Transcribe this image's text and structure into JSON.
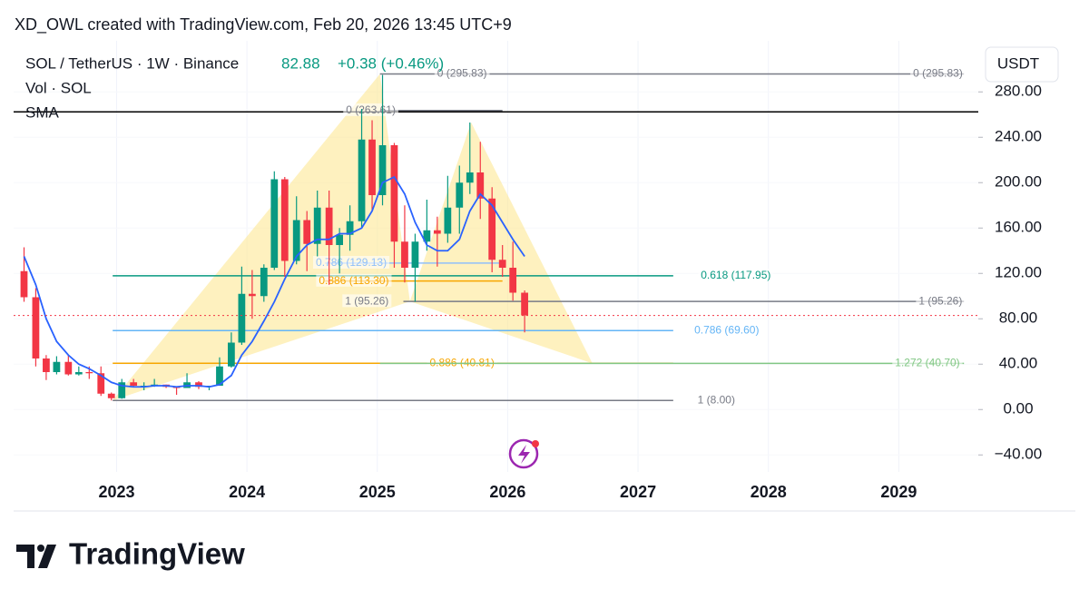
{
  "header": {
    "credit": "XD_OWL created with TradingView.com, Feb 20, 2026 13:45 UTC+9"
  },
  "footer": {
    "brand": "TradingView"
  },
  "chart_data": {
    "type": "candlestick",
    "title": "SOL / TetherUS · 1W · Binance",
    "last_price": 82.88,
    "change": "+0.38 (+0.46%)",
    "volume_label": "Vol · SOL",
    "currency": "USDT",
    "up_color": "#089981",
    "down_color": "#f23645",
    "x": [
      2022.29,
      2022.38,
      2022.46,
      2022.54,
      2022.63,
      2022.71,
      2022.79,
      2022.88,
      2022.96,
      2023.04,
      2023.13,
      2023.21,
      2023.29,
      2023.38,
      2023.46,
      2023.54,
      2023.63,
      2023.71,
      2023.79,
      2023.88,
      2023.96,
      2024.04,
      2024.13,
      2024.21,
      2024.29,
      2024.38,
      2024.46,
      2024.54,
      2024.63,
      2024.71,
      2024.79,
      2024.88,
      2024.96,
      2025.04,
      2025.13,
      2025.21,
      2025.29,
      2025.38,
      2025.46,
      2025.54,
      2025.63,
      2025.71,
      2025.79,
      2025.88,
      2025.96,
      2026.04,
      2026.13
    ],
    "open": [
      122,
      99,
      45,
      33,
      42,
      31,
      33,
      32,
      14,
      10,
      24,
      21,
      21,
      22,
      20,
      19,
      24,
      20,
      21,
      38,
      59,
      102,
      100,
      125,
      203,
      131,
      167,
      146,
      178,
      145,
      154,
      166,
      238,
      189,
      233,
      148,
      125,
      148,
      158,
      155,
      178,
      200,
      209,
      186,
      132,
      125,
      103
    ],
    "high": [
      143,
      107,
      48,
      47,
      48,
      38,
      38,
      38,
      15,
      27,
      27,
      24,
      27,
      22,
      20,
      32,
      25,
      21,
      46,
      68,
      126,
      123,
      128,
      210,
      205,
      188,
      175,
      193,
      193,
      160,
      180,
      265,
      255,
      295,
      235,
      180,
      155,
      185,
      170,
      206,
      215,
      253,
      236,
      196,
      145,
      148,
      105
    ],
    "low": [
      95,
      38,
      26,
      31,
      30,
      30,
      27,
      12,
      8,
      9.5,
      20,
      17,
      20,
      19,
      13,
      19,
      18,
      17,
      21,
      37,
      57,
      80,
      95,
      123,
      117,
      128,
      122,
      135,
      110,
      120,
      140,
      160,
      175,
      180,
      125,
      112,
      95,
      140,
      126,
      147,
      155,
      190,
      168,
      121,
      117,
      96,
      68
    ],
    "close": [
      99,
      45,
      33,
      42,
      31,
      33,
      32,
      14,
      10,
      24,
      21,
      21,
      22,
      20,
      19,
      24,
      20,
      21,
      38,
      59,
      102,
      100,
      125,
      203,
      131,
      167,
      146,
      178,
      145,
      154,
      166,
      238,
      189,
      233,
      148,
      125,
      148,
      158,
      155,
      178,
      200,
      209,
      186,
      132,
      125,
      103,
      83
    ],
    "sma": {
      "name": "SMA",
      "color": "#2962ff",
      "values": [
        135,
        110,
        80,
        60,
        48,
        40,
        36,
        30,
        24,
        21,
        20,
        20,
        21,
        21,
        20,
        21,
        21,
        20,
        22,
        30,
        48,
        60,
        78,
        95,
        115,
        135,
        145,
        150,
        150,
        155,
        155,
        160,
        175,
        200,
        205,
        190,
        165,
        145,
        140,
        140,
        150,
        175,
        190,
        180,
        165,
        150,
        135
      ]
    },
    "level_line": 262.4,
    "pattern": {
      "color": "#fde68a",
      "points": [
        [
          2022.97,
          8
        ],
        [
          2025.02,
          295.83
        ],
        [
          2025.25,
          95.26
        ],
        [
          2025.72,
          253
        ],
        [
          2026.65,
          40.7
        ]
      ]
    },
    "annotations": [
      {
        "value": 295.83,
        "x1": 2025.02,
        "x2": 2029.5,
        "color": "#787b86",
        "labels": [
          {
            "text": "0 (295.83)",
            "x": 2025.65
          },
          {
            "text": "0 (295.83)",
            "x": 2029.3
          }
        ]
      },
      {
        "value": 263.61,
        "x1": 2025.02,
        "x2": 2025.96,
        "color": "#787b86",
        "labels": [
          {
            "text": "0 (263.61)",
            "x": 2024.95
          }
        ]
      },
      {
        "value": 129.13,
        "x1": 2024.6,
        "x2": 2025.96,
        "color": "#90bff9",
        "labels": [
          {
            "text": "0.786 (129.13)",
            "x": 2024.8
          }
        ]
      },
      {
        "value": 117.95,
        "x1": 2022.97,
        "x2": 2027.27,
        "color": "#089981",
        "labels": [
          {
            "text": "0.618 (117.95)",
            "x": 2027.75
          }
        ]
      },
      {
        "value": 113.3,
        "x1": 2024.6,
        "x2": 2025.96,
        "color": "#f7a600",
        "labels": [
          {
            "text": "0.886 (113.30)",
            "x": 2024.82
          }
        ]
      },
      {
        "value": 95.26,
        "x1": 2025.2,
        "x2": 2029.5,
        "color": "#787b86",
        "labels": [
          {
            "text": "1 (95.26)",
            "x": 2024.92
          },
          {
            "text": "1 (95.26)",
            "x": 2029.32
          }
        ]
      },
      {
        "value": 69.6,
        "x1": 2022.97,
        "x2": 2027.27,
        "color": "#64b5f6",
        "labels": [
          {
            "text": "0.786 (69.60)",
            "x": 2027.68
          }
        ]
      },
      {
        "value": 40.81,
        "x1": 2022.97,
        "x2": 2027.27,
        "color": "#f7a600",
        "labels": [
          {
            "text": "0.886 (40.81)",
            "x": 2025.65
          }
        ]
      },
      {
        "value": 40.7,
        "x1": 2025.02,
        "x2": 2029.5,
        "color": "#81c784",
        "labels": [
          {
            "text": "1.272 (40.70)",
            "x": 2029.22
          }
        ]
      },
      {
        "value": 8,
        "x1": 2022.97,
        "x2": 2027.27,
        "color": "#787b86",
        "labels": [
          {
            "text": "1 (8.00)",
            "x": 2027.6
          }
        ]
      }
    ],
    "xlim": [
      2022.21,
      2029.61
    ],
    "xticks": [
      2023,
      2024,
      2025,
      2026,
      2027,
      2028,
      2029
    ],
    "ylim": [
      -55,
      325
    ],
    "yticks": [
      {
        "value": -40,
        "label": "−40.00"
      },
      {
        "value": 0,
        "label": "0.00"
      },
      {
        "value": 40,
        "label": "40.00"
      },
      {
        "value": 80,
        "label": "80.00"
      },
      {
        "value": 120,
        "label": "120.00"
      },
      {
        "value": 160,
        "label": "160.00"
      },
      {
        "value": 200,
        "label": "200.00"
      },
      {
        "value": 240,
        "label": "240.00"
      },
      {
        "value": 280,
        "label": "280.00"
      }
    ],
    "grid": true
  }
}
